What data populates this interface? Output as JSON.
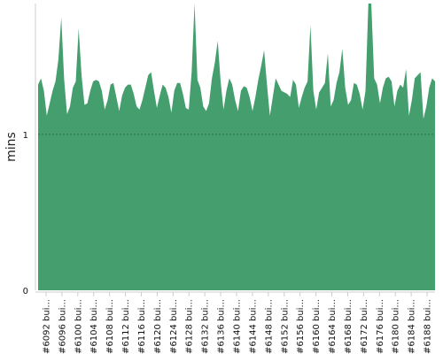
{
  "chart_data": {
    "type": "area",
    "ylabel": "mins",
    "ylim": [
      0,
      1.84
    ],
    "yticks": [
      0,
      1
    ],
    "grid": "dashed horizontal line at y = 1",
    "color": "#459e6e",
    "x_tick_labels": [
      "#6092 bui...",
      "#6096 bui...",
      "#6100 bui...",
      "#6104 bui...",
      "#6108 bui...",
      "#6112 bui...",
      "#6116 bui...",
      "#6120 bui...",
      "#6124 bui...",
      "#6128 bui...",
      "#6132 bui...",
      "#6136 bui...",
      "#6140 bui...",
      "#6144 bui...",
      "#6148 bui...",
      "#6152 bui...",
      "#6156 bui...",
      "#6160 bui...",
      "#6164 bui...",
      "#6168 bui...",
      "#6172 bui...",
      "#6176 bui...",
      "#6180 bui...",
      "#6184 bui...",
      "#6188 bui..."
    ],
    "x_build_range": [
      6090,
      6190
    ],
    "values": [
      1.32,
      1.36,
      1.28,
      1.12,
      1.2,
      1.28,
      1.34,
      1.48,
      1.75,
      1.35,
      1.13,
      1.18,
      1.3,
      1.34,
      1.68,
      1.38,
      1.19,
      1.2,
      1.28,
      1.34,
      1.35,
      1.34,
      1.28,
      1.16,
      1.22,
      1.32,
      1.33,
      1.24,
      1.15,
      1.25,
      1.3,
      1.32,
      1.32,
      1.26,
      1.18,
      1.16,
      1.22,
      1.3,
      1.38,
      1.4,
      1.28,
      1.17,
      1.25,
      1.32,
      1.3,
      1.24,
      1.14,
      1.28,
      1.33,
      1.33,
      1.26,
      1.17,
      1.16,
      1.4,
      1.84,
      1.35,
      1.3,
      1.18,
      1.15,
      1.2,
      1.36,
      1.46,
      1.6,
      1.34,
      1.16,
      1.28,
      1.36,
      1.32,
      1.22,
      1.15,
      1.28,
      1.31,
      1.3,
      1.24,
      1.15,
      1.24,
      1.35,
      1.44,
      1.54,
      1.32,
      1.12,
      1.24,
      1.36,
      1.32,
      1.28,
      1.27,
      1.26,
      1.24,
      1.35,
      1.32,
      1.17,
      1.24,
      1.3,
      1.34,
      1.7,
      1.28,
      1.16,
      1.27,
      1.3,
      1.33,
      1.52,
      1.18,
      1.22,
      1.33,
      1.4,
      1.55,
      1.3,
      1.19,
      1.22,
      1.33,
      1.32,
      1.26,
      1.16,
      1.28,
      1.84,
      1.84,
      1.36,
      1.32,
      1.2,
      1.3,
      1.36,
      1.37,
      1.34,
      1.18,
      1.28,
      1.32,
      1.3,
      1.42,
      1.12,
      1.22,
      1.36,
      1.38,
      1.4,
      1.1,
      1.18,
      1.3,
      1.36,
      1.34
    ]
  }
}
